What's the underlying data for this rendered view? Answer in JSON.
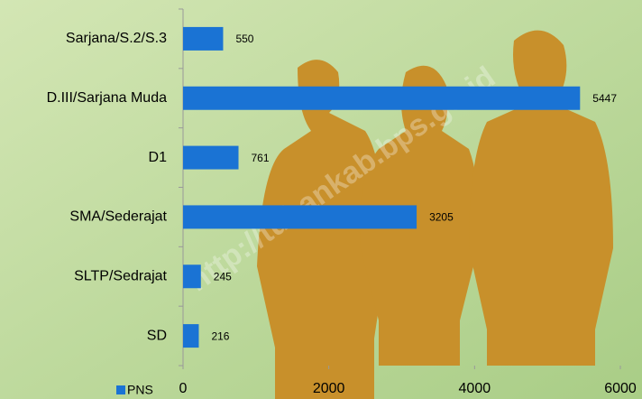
{
  "chart_data": {
    "type": "bar",
    "orientation": "horizontal",
    "watermark": "http://tubankab.bps.go.id",
    "categories": [
      "Sarjana/S.2/S.3",
      "D.III/Sarjana Muda",
      "D1",
      "SMA/Sederajat",
      "SLTP/Sedrajat",
      "SD"
    ],
    "series": [
      {
        "name": "PNS",
        "color": "#1a73d4",
        "values": [
          550,
          5447,
          761,
          3205,
          245,
          216
        ]
      }
    ],
    "xlim": [
      0,
      6000
    ],
    "xticks": [
      0,
      2000,
      4000,
      6000
    ],
    "legend": "bottom-left",
    "grid": false
  }
}
